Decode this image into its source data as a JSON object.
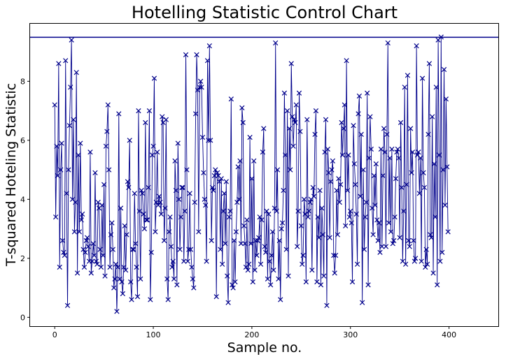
{
  "chart_data": {
    "type": "line",
    "title": "Hotelling Statistic Control Chart",
    "xlabel": "Sample no.",
    "ylabel": "T-squared Hoteling Statistic",
    "xlim": [
      -25,
      450
    ],
    "ylim": [
      -0.3,
      9.95
    ],
    "xticks": [
      0,
      100,
      200,
      300,
      400
    ],
    "yticks": [
      0,
      2,
      4,
      6,
      8
    ],
    "grid": false,
    "control_limit": 9.49,
    "colors": {
      "series": "#00008b",
      "limit": "#00008b"
    },
    "series": [
      {
        "marker": "x",
        "x_start": 0,
        "values": [
          7.2,
          3.4,
          5.8,
          4.8,
          8.6,
          1.7,
          5.0,
          5.9,
          2.6,
          2.2,
          2.1,
          8.7,
          4.2,
          0.4,
          5.0,
          6.5,
          7.8,
          9.4,
          4.0,
          6.7,
          2.9,
          3.9,
          8.3,
          1.5,
          5.5,
          2.9,
          5.9,
          3.3,
          3.5,
          2.3,
          1.7,
          2.2,
          2.6,
          2.7,
          2.4,
          1.9,
          5.6,
          1.5,
          1.9,
          2.5,
          2.1,
          4.9,
          1.9,
          1.8,
          3.9,
          3.7,
          2.3,
          1.7,
          3.8,
          2.1,
          4.5,
          1.4,
          5.8,
          6.3,
          7.2,
          5.0,
          1.7,
          2.8,
          3.2,
          2.3,
          1.0,
          1.3,
          1.8,
          0.2,
          1.7,
          6.9,
          1.3,
          3.7,
          1.2,
          0.8,
          1.7,
          3.1,
          1.6,
          2.8,
          4.6,
          4.4,
          6.0,
          1.2,
          0.6,
          2.3,
          2.3,
          4.2,
          2.5,
          1.7,
          0.7,
          7.0,
          3.6,
          1.3,
          4.3,
          4.2,
          3.5,
          3.0,
          6.6,
          3.3,
          3.3,
          4.4,
          7.0,
          0.6,
          2.2,
          5.5,
          5.8,
          8.1,
          2.9,
          3.9,
          5.6,
          3.8,
          4.1,
          3.9,
          3.5,
          6.8,
          6.6,
          2.6,
          3.7,
          6.7,
          1.3,
          0.6,
          2.9,
          3.4,
          2.4,
          1.7,
          1.9,
          1.3,
          5.3,
          4.3,
          1.1,
          5.9,
          4.0,
          2.3,
          3.4,
          4.4,
          4.4,
          1.9,
          3.6,
          8.9,
          5.0,
          1.9,
          2.3,
          4.2,
          2.3,
          1.7,
          1.3,
          1.0,
          3.9,
          6.9,
          8.9,
          7.7,
          2.9,
          7.8,
          8.0,
          7.8,
          6.1,
          4.9,
          4.0,
          3.8,
          1.9,
          8.7,
          6.0,
          9.2,
          6.0,
          2.6,
          4.4,
          4.3,
          4.8,
          5.0,
          0.7,
          4.9,
          4.8,
          4.6,
          2.3,
          4.7,
          1.8,
          3.6,
          4.2,
          2.5,
          4.6,
          1.4,
          0.5,
          3.4,
          3.6,
          7.4,
          1.1,
          1.0,
          2.6,
          1.2,
          2.9,
          3.9,
          5.1,
          4.0,
          5.3,
          2.5,
          7.1,
          6.6,
          3.1,
          2.5,
          1.7,
          3.3,
          1.6,
          1.8,
          6.1,
          2.5,
          4.7,
          1.2,
          5.3,
          1.6,
          2.6,
          2.1,
          2.6,
          2.7,
          3.4,
          1.8,
          3.3,
          5.6,
          6.4,
          2.4,
          2.2,
          3.6,
          1.3,
          3.5,
          1.9,
          1.1,
          2.1,
          2.9,
          1.6,
          3.7,
          9.3,
          3.6,
          5.0,
          1.3,
          2.6,
          0.6,
          3.0,
          3.2,
          4.3,
          7.6,
          5.5,
          2.3,
          7.0,
          1.4,
          6.4,
          5.0,
          8.6,
          6.8,
          5.8,
          6.7,
          6.6,
          7.2,
          2.4,
          3.6,
          7.6,
          6.3,
          3.1,
          1.8,
          2.1,
          4.0,
          3.5,
          1.2,
          6.7,
          3.4,
          3.6,
          3.9,
          4.0,
          1.6,
          4.4,
          4.1,
          6.2,
          7.0,
          1.2,
          3.4,
          2.7,
          4.3,
          1.1,
          3.7,
          2.8,
          1.4,
          5.6,
          6.7,
          0.4,
          5.7,
          4.9,
          2.7,
          4.6,
          5.0,
          5.3,
          2.1,
          1.5,
          2.1,
          4.3,
          2.8,
          4.7,
          3.9,
          4.5,
          6.6,
          5.5,
          6.4,
          7.2,
          3.1,
          8.7,
          4.3,
          5.5,
          3.4,
          3.6,
          3.2,
          1.2,
          6.5,
          5.2,
          4.5,
          3.5,
          1.8,
          6.9,
          7.5,
          4.1,
          6.2,
          0.5,
          5.0,
          2.3,
          3.4,
          3.9,
          7.6,
          1.1,
          5.4,
          6.8,
          5.7,
          3.7,
          2.8,
          4.8,
          3.8,
          5.2,
          3.3,
          2.6,
          3.2,
          2.2,
          5.7,
          2.4,
          4.8,
          6.4,
          5.6,
          2.4,
          6.2,
          9.3,
          3.2,
          5.4,
          2.9,
          5.7,
          2.5,
          2.6,
          3.4,
          4.7,
          5.6,
          5.7,
          5.4,
          2.7,
          6.6,
          4.4,
          1.9,
          3.6,
          7.8,
          1.8,
          4.5,
          8.2,
          2.6,
          2.4,
          6.4,
          4.9,
          5.6,
          2.6,
          1.9,
          2.0,
          9.2,
          5.5,
          5.6,
          4.2,
          5.4,
          1.9,
          8.1,
          4.9,
          4.4,
          1.7,
          2.3,
          1.8,
          6.2,
          8.6,
          2.8,
          2.7,
          6.8,
          1.5,
          5.2,
          3.4,
          7.8,
          1.1,
          9.4,
          5.5,
          1.9,
          9.5,
          2.2,
          5.0,
          8.4,
          3.8,
          7.4,
          5.1,
          2.9
        ]
      }
    ]
  }
}
